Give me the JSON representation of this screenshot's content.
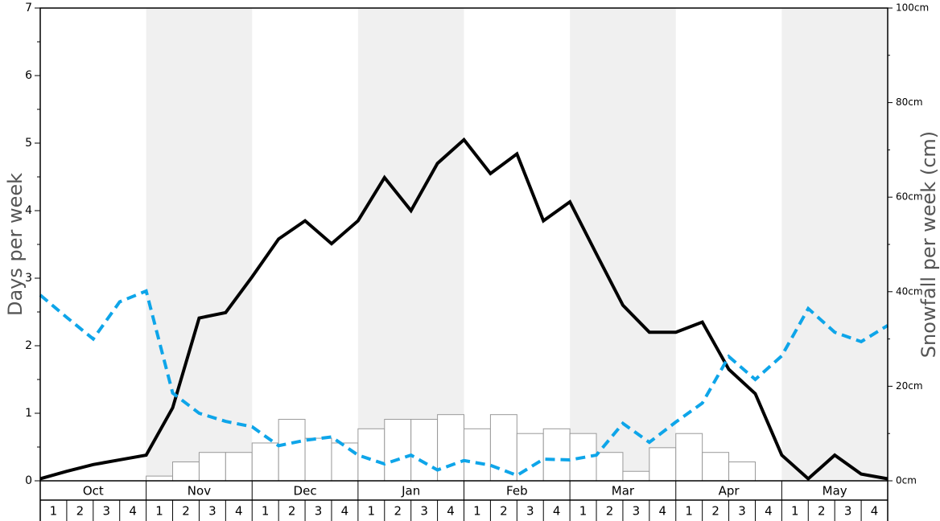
{
  "chart_data": {
    "type": "bar+line",
    "title": "",
    "months": [
      "Oct",
      "Nov",
      "Dec",
      "Jan",
      "Feb",
      "Mar",
      "Apr",
      "May"
    ],
    "week_labels": [
      "1",
      "2",
      "3",
      "4"
    ],
    "left_axis": {
      "label": "Days per week",
      "ylim": [
        0,
        7
      ],
      "ticks": [
        "0",
        "1",
        "2",
        "3",
        "4",
        "5",
        "6",
        "7"
      ]
    },
    "right_axis": {
      "label": "Snowfall per week (cm)",
      "ylim": [
        0,
        100
      ],
      "ticks": [
        "0cm",
        "20cm",
        "40cm",
        "60cm",
        "80cm",
        "100cm"
      ]
    },
    "series": [
      {
        "kind": "bar",
        "axis": "right",
        "values": [
          0,
          0,
          0,
          0,
          1,
          4,
          6,
          6,
          8,
          13,
          9,
          8,
          11,
          13,
          13,
          14,
          11,
          14,
          10,
          11,
          10,
          6,
          2,
          7,
          10,
          6,
          4,
          0,
          0,
          0,
          0,
          0
        ],
        "fill": "#ffffff",
        "stroke": "#999999"
      },
      {
        "kind": "line",
        "style": "solid",
        "axis": "left",
        "values": [
          0.03,
          0.14,
          0.24,
          0.31,
          0.38,
          1.08,
          2.41,
          2.49,
          3.02,
          3.58,
          3.85,
          3.51,
          3.85,
          4.49,
          4.0,
          4.7,
          5.05,
          4.55,
          4.84,
          3.85,
          4.13,
          3.36,
          2.6,
          2.2,
          2.2,
          2.35,
          1.65,
          1.29,
          0.38,
          0.03,
          0.38,
          0.1,
          0.03
        ],
        "color": "#000000"
      },
      {
        "kind": "line",
        "style": "dashed",
        "axis": "left",
        "values": [
          2.75,
          2.42,
          2.1,
          2.65,
          2.81,
          1.3,
          1.0,
          0.88,
          0.8,
          0.52,
          0.6,
          0.65,
          0.38,
          0.25,
          0.38,
          0.16,
          0.3,
          0.23,
          0.08,
          0.32,
          0.31,
          0.38,
          0.85,
          0.57,
          0.87,
          1.15,
          1.84,
          1.5,
          1.85,
          2.55,
          2.2,
          2.06,
          2.3
        ],
        "color": "#0ea5e9"
      }
    ],
    "shaded_months": [
      "Nov",
      "Jan",
      "Mar",
      "May"
    ],
    "grid": false,
    "legend": "none"
  }
}
